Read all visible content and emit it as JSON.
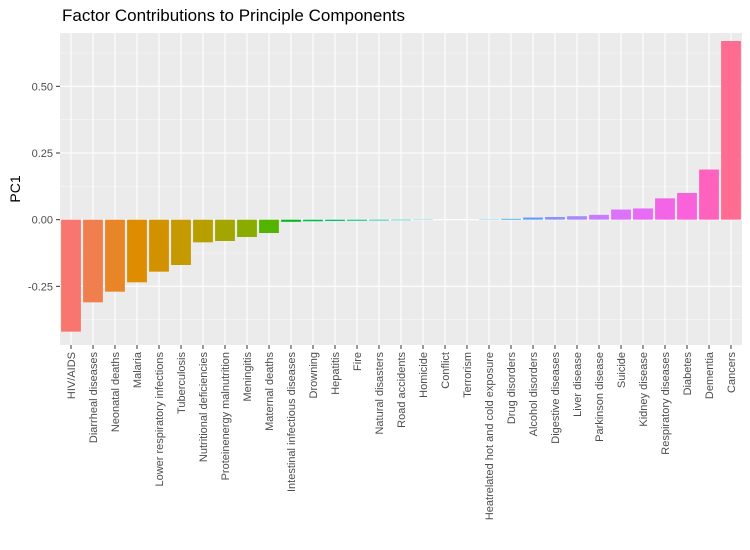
{
  "chart_data": {
    "type": "bar",
    "title": "Factor Contributions to Principle Components",
    "xlabel": "",
    "ylabel": "PC1",
    "ylim": [
      -0.47,
      0.7
    ],
    "yticks": [
      -0.25,
      0.0,
      0.25,
      0.5
    ],
    "ytick_labels": [
      "-0.25",
      "0.00",
      "0.25",
      "0.50"
    ],
    "grid": true,
    "panel_background": "#EBEBEB",
    "categories": [
      "HIV/AIDS",
      "Diarrheal diseases",
      "Neonatal deaths",
      "Malaria",
      "Lower respiratory infections",
      "Tuberculosis",
      "Nutritional deficiencies",
      "Proteinenergy malnutrition",
      "Meningitis",
      "Maternal deaths",
      "Intestinal infectious diseases",
      "Drowning",
      "Hepatitis",
      "Fire",
      "Natural disasters",
      "Road accidents",
      "Homicide",
      "Conflict",
      "Terrorism",
      "Heatrelated hot and cold exposure",
      "Drug disorders",
      "Alcohol disorders",
      "Digestive diseases",
      "Liver disease",
      "Parkinson disease",
      "Suicide",
      "Kidney disease",
      "Respiratory diseases",
      "Diabetes",
      "Dementia",
      "Cancers"
    ],
    "values": [
      -0.42,
      -0.31,
      -0.27,
      -0.235,
      -0.195,
      -0.17,
      -0.085,
      -0.08,
      -0.065,
      -0.05,
      -0.008,
      -0.006,
      -0.005,
      -0.004,
      -0.003,
      -0.002,
      -0.001,
      0.0,
      0.0,
      0.001,
      0.003,
      0.008,
      0.01,
      0.013,
      0.018,
      0.038,
      0.042,
      0.08,
      0.1,
      0.188,
      0.67
    ],
    "colors": [
      "#F8766D",
      "#F07F4E",
      "#E88526",
      "#DE8C00",
      "#D29200",
      "#C59900",
      "#B79F00",
      "#A3A500",
      "#8AAB00",
      "#53B400",
      "#00B81F",
      "#00BB4E",
      "#00BD6A",
      "#00BF7D",
      "#00C094",
      "#00C0AF",
      "#00BFC4",
      "#00BCD8",
      "#00B6EB",
      "#00B0F6",
      "#35A2FF",
      "#619CFF",
      "#8B93FF",
      "#A58AFF",
      "#C77CFF",
      "#DC71FA",
      "#E76BF3",
      "#F365E6",
      "#FA62DB",
      "#FF62BC",
      "#FF6C91"
    ]
  }
}
